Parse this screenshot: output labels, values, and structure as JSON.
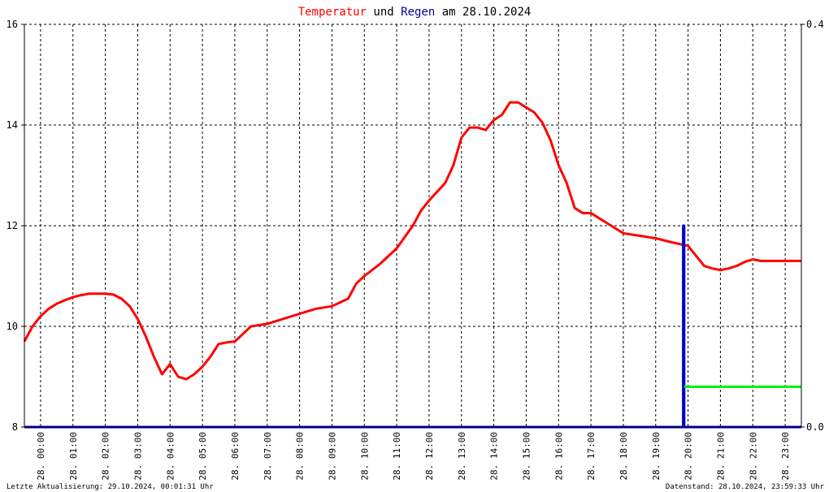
{
  "title": {
    "part1": "Temperatur",
    "part2": " und ",
    "part3": "Regen",
    "part4": " am 28.10.2024",
    "color1": "#ff0000",
    "color2": "#000000",
    "color3": "#000099",
    "color4": "#000000"
  },
  "footer": {
    "left": "Letzte Aktualisierung: 29.10.2024, 00:01:31 Uhr",
    "right": "Datenstand: 28.10.2024, 23:59:33 Uhr"
  },
  "chart_data": {
    "type": "line",
    "title": "Temperatur und Regen am 28.10.2024",
    "x_unit": "hours",
    "xlim": [
      0,
      24
    ],
    "x_tick_labels": [
      "28. 00:00",
      "28. 01:00",
      "28. 02:00",
      "28. 03:00",
      "28. 04:00",
      "28. 05:00",
      "28. 06:00",
      "28. 07:00",
      "28. 08:00",
      "28. 09:00",
      "28. 10:00",
      "28. 11:00",
      "28. 12:00",
      "28. 13:00",
      "28. 14:00",
      "28. 15:00",
      "28. 16:00",
      "28. 17:00",
      "28. 18:00",
      "28. 19:00",
      "28. 20:00",
      "28. 21:00",
      "28. 22:00",
      "28. 23:00"
    ],
    "ylim_left": [
      8,
      16
    ],
    "y_ticks_left": [
      "8",
      "10",
      "12",
      "14",
      "16"
    ],
    "ylim_right": [
      0,
      0.4
    ],
    "y_ticks_right": [
      "0.0",
      "0.4"
    ],
    "grid": true,
    "series": [
      {
        "color": "#ff0000",
        "axis": "left",
        "x": [
          0,
          0.25,
          0.5,
          0.75,
          1.0,
          1.25,
          1.5,
          1.75,
          2.0,
          2.25,
          2.5,
          2.75,
          3.0,
          3.25,
          3.5,
          3.75,
          4.0,
          4.25,
          4.5,
          4.75,
          5.0,
          5.25,
          5.5,
          5.75,
          6.0,
          6.25,
          6.5,
          6.75,
          7.0,
          7.5,
          8.0,
          8.5,
          9.0,
          9.5,
          10.0,
          10.25,
          10.5,
          11.0,
          11.5,
          12.0,
          12.25,
          12.5,
          13.0,
          13.25,
          13.5,
          13.75,
          14.0,
          14.25,
          14.5,
          14.75,
          15.0,
          15.25,
          15.5,
          15.75,
          16.0,
          16.25,
          16.5,
          16.75,
          17.0,
          17.25,
          17.5,
          17.75,
          18.0,
          18.5,
          19.0,
          19.5,
          20.0,
          20.5,
          20.75,
          21.0,
          21.25,
          21.5,
          21.75,
          22.0,
          22.25,
          22.5,
          22.75,
          23.0,
          23.25,
          23.5,
          23.75,
          24.0
        ],
        "values": [
          9.7,
          10.0,
          10.2,
          10.35,
          10.45,
          10.52,
          10.58,
          10.62,
          10.65,
          10.65,
          10.65,
          10.63,
          10.55,
          10.4,
          10.15,
          9.8,
          9.4,
          9.05,
          9.25,
          9.0,
          8.95,
          9.05,
          9.2,
          9.4,
          9.65,
          9.68,
          9.7,
          9.85,
          10.0,
          10.05,
          10.15,
          10.25,
          10.35,
          10.4,
          10.55,
          10.85,
          11.0,
          11.25,
          11.55,
          12.0,
          12.3,
          12.5,
          12.85,
          13.2,
          13.75,
          13.95,
          13.95,
          13.9,
          14.1,
          14.2,
          14.45,
          14.45,
          14.35,
          14.25,
          14.05,
          13.7,
          13.2,
          12.85,
          12.35,
          12.25,
          12.25,
          12.15,
          12.05,
          11.85,
          11.8,
          11.75,
          11.67,
          11.6,
          11.4,
          11.2,
          11.15,
          11.12,
          11.15,
          11.2,
          11.28,
          11.33,
          11.3,
          11.3,
          11.3,
          11.3,
          11.3,
          11.3
        ]
      },
      {
        "color": "#0000cc",
        "axis": "right",
        "x": [
          0,
          20.35,
          20.35,
          20.38,
          20.38,
          24.0
        ],
        "values": [
          0.0,
          0.0,
          0.2,
          0.2,
          0.0,
          0.0
        ]
      },
      {
        "color": "#00ee00",
        "axis": "right",
        "x": [
          20.38,
          24.0
        ],
        "values": [
          0.04,
          0.04
        ]
      }
    ]
  }
}
